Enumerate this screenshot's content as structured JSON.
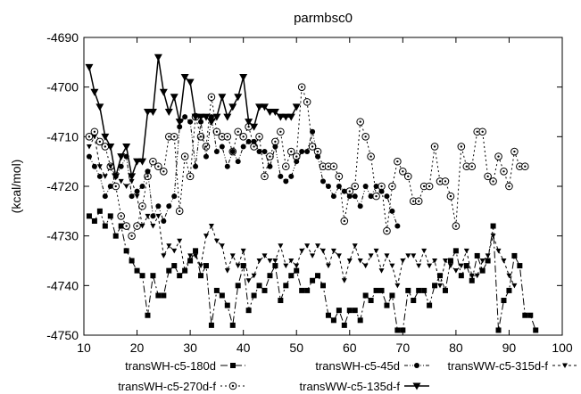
{
  "chart_data": {
    "type": "line",
    "title": "parmbsc0",
    "xlabel": "",
    "ylabel": "(kcal/mol)",
    "xlim": [
      10,
      100
    ],
    "ylim": [
      -4750,
      -4690
    ],
    "xticks": [
      10,
      20,
      30,
      40,
      50,
      60,
      70,
      80,
      90,
      100
    ],
    "yticks": [
      -4750,
      -4740,
      -4730,
      -4720,
      -4710,
      -4700,
      -4690
    ],
    "grid": false,
    "legend_position": "bottom",
    "series": [
      {
        "name": "transWH-c5-180d",
        "marker": "square",
        "dash": "8 3 2 3",
        "x": [
          11,
          12,
          13,
          14,
          15,
          16,
          17,
          18,
          19,
          20,
          21,
          22,
          23,
          24,
          25,
          26,
          27,
          28,
          29,
          30,
          31,
          32,
          33,
          34,
          35,
          36,
          37,
          38,
          39,
          40,
          41,
          42,
          43,
          44,
          45,
          46,
          47,
          48,
          49,
          50,
          51,
          52,
          53,
          54,
          55,
          56,
          57,
          58,
          59,
          60,
          61,
          62,
          63,
          64,
          65,
          66,
          67,
          68,
          69,
          70,
          71,
          72,
          73,
          74,
          75,
          76,
          77,
          78,
          79,
          80,
          81,
          82,
          83,
          84,
          85,
          86,
          87,
          88,
          89,
          90,
          91,
          92,
          93,
          94,
          95
        ],
        "y": [
          -4726,
          -4727,
          -4725,
          -4728,
          -4726,
          -4730,
          -4728,
          -4733,
          -4735,
          -4737,
          -4738,
          -4746,
          -4738,
          -4742,
          -4742,
          -4737,
          -4736,
          -4738,
          -4737,
          -4735,
          -4733,
          -4738,
          -4736,
          -4748,
          -4741,
          -4742,
          -4744,
          -4748,
          -4740,
          -4736,
          -4745,
          -4742,
          -4740,
          -4741,
          -4738,
          -4736,
          -4743,
          -4740,
          -4738,
          -4737,
          -4741,
          -4741,
          -4739,
          -4738,
          -4740,
          -4746,
          -4747,
          -4745,
          -4748,
          -4745,
          -4745,
          -4747,
          -4742,
          -4743,
          -4741,
          -4741,
          -4744,
          -4742,
          -4749,
          -4749,
          -4741,
          -4743,
          -4741,
          -4741,
          -4744,
          -4740,
          -4738,
          -4741,
          -4735,
          -4733,
          -4738,
          -4736,
          -4739,
          -4734,
          -4737,
          -4735,
          -4728,
          -4749,
          -4743,
          -4741,
          -4734,
          -4736,
          -4746,
          -4746,
          -4749
        ]
      },
      {
        "name": "transWH-c5-270d-f",
        "marker": "circle",
        "dash": "2 3",
        "x": [
          11,
          12,
          13,
          14,
          15,
          16,
          17,
          18,
          19,
          20,
          21,
          22,
          23,
          24,
          25,
          26,
          27,
          28,
          29,
          30,
          31,
          32,
          33,
          34,
          35,
          36,
          37,
          38,
          39,
          40,
          41,
          42,
          43,
          44,
          45,
          46,
          47,
          48,
          49,
          50,
          51,
          52,
          53,
          54,
          55,
          56,
          57,
          58,
          59,
          60,
          61,
          62,
          63,
          64,
          65,
          66,
          67,
          68,
          69,
          70,
          71,
          72,
          73,
          74,
          75,
          76,
          77,
          78,
          79,
          80,
          81,
          82,
          83,
          84,
          85,
          86,
          87,
          88,
          89,
          90,
          91,
          92,
          93
        ],
        "y": [
          -4710,
          -4709,
          -4711,
          -4712,
          -4716,
          -4720,
          -4726,
          -4728,
          -4730,
          -4728,
          -4724,
          -4718,
          -4715,
          -4716,
          -4717,
          -4710,
          -4710,
          -4725,
          -4714,
          -4718,
          -4706,
          -4710,
          -4712,
          -4702,
          -4709,
          -4710,
          -4710,
          -4713,
          -4709,
          -4710,
          -4708,
          -4712,
          -4710,
          -4718,
          -4714,
          -4711,
          -4709,
          -4716,
          -4713,
          -4714,
          -4700,
          -4703,
          -4712,
          -4713,
          -4716,
          -4716,
          -4716,
          -4718,
          -4727,
          -4721,
          -4720,
          -4707,
          -4710,
          -4714,
          -4722,
          -4720,
          -4729,
          -4720,
          -4715,
          -4717,
          -4718,
          -4723,
          -4723,
          -4720,
          -4720,
          -4712,
          -4719,
          -4719,
          -4722,
          -4728,
          -4712,
          -4716,
          -4716,
          -4709,
          -4709,
          -4718,
          -4719,
          -4714,
          -4717,
          -4720,
          -4713,
          -4716,
          -4716
        ]
      },
      {
        "name": "transWH-c5-45d",
        "marker": "dot",
        "dash": "4 2 1 2 1 2",
        "x": [
          11,
          12,
          13,
          14,
          15,
          16,
          17,
          18,
          19,
          20,
          21,
          22,
          23,
          24,
          25,
          26,
          27,
          28,
          29,
          30,
          31,
          32,
          33,
          34,
          35,
          36,
          37,
          38,
          39,
          40,
          41,
          42,
          43,
          44,
          45,
          46,
          47,
          48,
          49,
          50,
          51,
          52,
          53,
          54,
          55,
          56,
          57,
          58,
          59,
          60,
          61,
          62,
          63,
          64,
          65,
          66,
          67,
          68,
          69
        ],
        "y": [
          -4714,
          -4716,
          -4718,
          -4722,
          -4720,
          -4718,
          -4716,
          -4714,
          -4722,
          -4721,
          -4720,
          -4717,
          -4726,
          -4724,
          -4727,
          -4724,
          -4722,
          -4708,
          -4706,
          -4707,
          -4716,
          -4707,
          -4714,
          -4706,
          -4713,
          -4712,
          -4716,
          -4713,
          -4715,
          -4712,
          -4711,
          -4711,
          -4713,
          -4713,
          -4716,
          -4712,
          -4718,
          -4719,
          -4718,
          -4715,
          -4713,
          -4713,
          -4709,
          -4714,
          -4719,
          -4720,
          -4722,
          -4720,
          -4721,
          -4722,
          -4722,
          -4724,
          -4720,
          -4722,
          -4720,
          -4721,
          -4722,
          -4725,
          -4728
        ]
      },
      {
        "name": "transWW-c5-135d-f",
        "marker": "triangle-down",
        "dash": "",
        "x": [
          11,
          12,
          13,
          14,
          15,
          16,
          17,
          18,
          19,
          20,
          21,
          22,
          23,
          24,
          25,
          26,
          27,
          28,
          29,
          30,
          31,
          32,
          33,
          34,
          35,
          36,
          37,
          38,
          39,
          40,
          41,
          42,
          43,
          44,
          45,
          46,
          47,
          48,
          49,
          50
        ],
        "y": [
          -4696,
          -4701,
          -4704,
          -4710,
          -4712,
          -4718,
          -4714,
          -4712,
          -4718,
          -4715,
          -4715,
          -4705,
          -4705,
          -4694,
          -4701,
          -4705,
          -4702,
          -4707,
          -4698,
          -4699,
          -4706,
          -4706,
          -4706,
          -4707,
          -4706,
          -4702,
          -4706,
          -4704,
          -4702,
          -4698,
          -4707,
          -4708,
          -4704,
          -4704,
          -4705,
          -4705,
          -4706,
          -4706,
          -4706,
          -4704
        ]
      },
      {
        "name": "transWW-c5-315d-f",
        "marker": "triangle-down-small",
        "dash": "3 3",
        "x": [
          11,
          12,
          13,
          14,
          15,
          16,
          17,
          18,
          19,
          20,
          21,
          22,
          23,
          24,
          25,
          26,
          27,
          28,
          29,
          30,
          31,
          32,
          33,
          34,
          35,
          36,
          37,
          38,
          39,
          40,
          41,
          42,
          43,
          44,
          45,
          46,
          47,
          48,
          49,
          50,
          51,
          52,
          53,
          54,
          55,
          56,
          57,
          58,
          59,
          60,
          61,
          62,
          63,
          64,
          65,
          66,
          67,
          68,
          69,
          70,
          71,
          72,
          73,
          74,
          75,
          76,
          77,
          78,
          79,
          80,
          81,
          82,
          83,
          84,
          85,
          86,
          87,
          88,
          89,
          90,
          91
        ],
        "y": [
          -4712,
          -4710,
          -4716,
          -4718,
          -4716,
          -4718,
          -4719,
          -4720,
          -4719,
          -4722,
          -4728,
          -4726,
          -4728,
          -4726,
          -4734,
          -4732,
          -4733,
          -4731,
          -4737,
          -4734,
          -4734,
          -4736,
          -4730,
          -4728,
          -4731,
          -4732,
          -4737,
          -4734,
          -4736,
          -4733,
          -4739,
          -4738,
          -4735,
          -4734,
          -4735,
          -4735,
          -4732,
          -4736,
          -4735,
          -4736,
          -4733,
          -4732,
          -4734,
          -4732,
          -4733,
          -4736,
          -4733,
          -4734,
          -4739,
          -4735,
          -4732,
          -4735,
          -4736,
          -4734,
          -4733,
          -4737,
          -4734,
          -4736,
          -4740,
          -4735,
          -4734,
          -4734,
          -4736,
          -4733,
          -4736,
          -4735,
          -4740,
          -4735,
          -4736,
          -4737,
          -4736,
          -4733,
          -4738,
          -4738,
          -4735,
          -4734,
          -4730,
          -4733,
          -4735,
          -4738,
          -4740
        ]
      }
    ]
  }
}
